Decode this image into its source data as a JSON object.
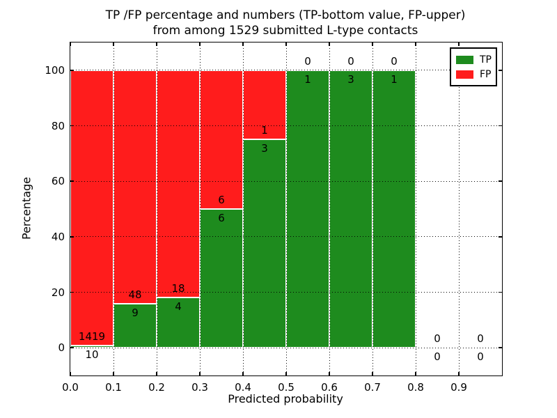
{
  "chart_data": {
    "type": "bar",
    "subtype": "stacked-percentage-histogram",
    "title_line1": "TP /FP percentage and numbers (TP-bottom value, FP-upper)",
    "title_line2": "from among 1529 submitted L-type contacts",
    "xlabel": "Predicted probability",
    "ylabel": "Percentage",
    "xlim": [
      0.0,
      1.0
    ],
    "ylim": [
      -10,
      110
    ],
    "x_tick_values": [
      0.0,
      0.1,
      0.2,
      0.3,
      0.4,
      0.5,
      0.6,
      0.7,
      0.8,
      0.9
    ],
    "x_ticks": [
      "0.0",
      "0.1",
      "0.2",
      "0.3",
      "0.4",
      "0.5",
      "0.6",
      "0.7",
      "0.8",
      "0.9"
    ],
    "y_tick_values": [
      0,
      20,
      40,
      60,
      80,
      100
    ],
    "y_ticks": [
      "0",
      "20",
      "40",
      "60",
      "80",
      "100"
    ],
    "grid": true,
    "total_contacts": 1529,
    "legend": {
      "position": "upper-right",
      "items": [
        {
          "label": "TP",
          "color": "#1e8b1e"
        },
        {
          "label": "FP",
          "color": "#ff1c1c"
        }
      ]
    },
    "bins": [
      {
        "x0": 0.0,
        "x1": 0.1,
        "tp": 10,
        "fp": 1419
      },
      {
        "x0": 0.1,
        "x1": 0.2,
        "tp": 9,
        "fp": 48
      },
      {
        "x0": 0.2,
        "x1": 0.3,
        "tp": 4,
        "fp": 18
      },
      {
        "x0": 0.3,
        "x1": 0.4,
        "tp": 6,
        "fp": 6
      },
      {
        "x0": 0.4,
        "x1": 0.5,
        "tp": 3,
        "fp": 1
      },
      {
        "x0": 0.5,
        "x1": 0.6,
        "tp": 1,
        "fp": 0
      },
      {
        "x0": 0.6,
        "x1": 0.7,
        "tp": 3,
        "fp": 0
      },
      {
        "x0": 0.7,
        "x1": 0.8,
        "tp": 1,
        "fp": 0
      },
      {
        "x0": 0.8,
        "x1": 0.9,
        "tp": 0,
        "fp": 0
      },
      {
        "x0": 0.9,
        "x1": 1.0,
        "tp": 0,
        "fp": 0
      }
    ]
  }
}
